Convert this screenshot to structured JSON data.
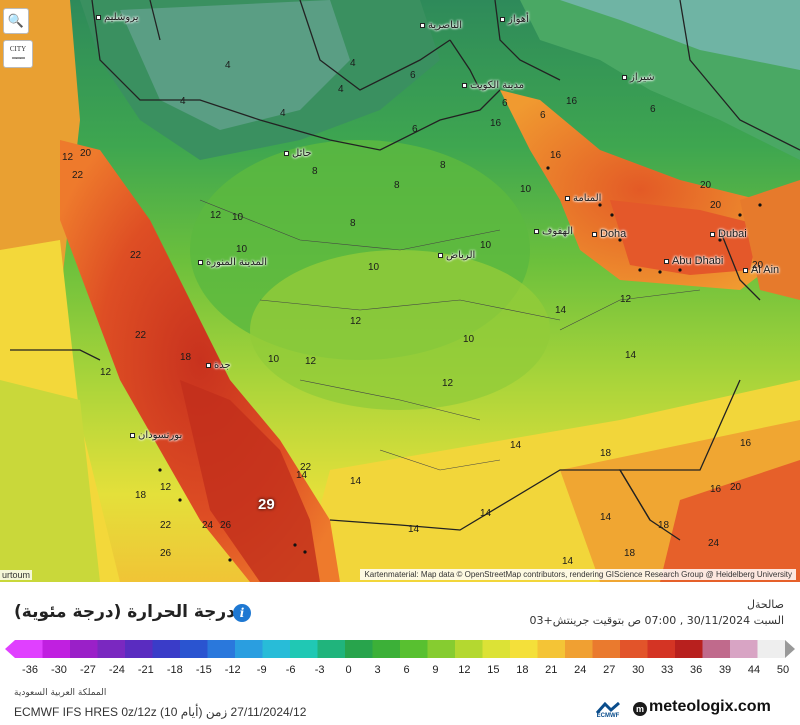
{
  "map": {
    "controls": {
      "zoom_icon": "magnifier-zoom-icon",
      "zoom_glyph": "🔍",
      "city_toggle_label": "CITY"
    },
    "attribution": "Kartenmaterial: Map data © OpenStreetMap contributors, rendering GIScience Research Group @ Heidelberg University",
    "corner_city": "urtoum",
    "cities": [
      {
        "name": "يروشليم"
      },
      {
        "name": "الناصرية"
      },
      {
        "name": "أهواز"
      },
      {
        "name": "مدينة الكويت"
      },
      {
        "name": "شيراز"
      },
      {
        "name": "حائل"
      },
      {
        "name": "المنامة"
      },
      {
        "name": "الهفوف"
      },
      {
        "name": "Doha"
      },
      {
        "name": "Dubai"
      },
      {
        "name": "Abu Dhabi"
      },
      {
        "name": "Al Ain"
      },
      {
        "name": "الرياض"
      },
      {
        "name": "المدينة المنورة"
      },
      {
        "name": "جدة"
      },
      {
        "name": "بورتسودان"
      }
    ],
    "temperature_labels": [
      "4",
      "4",
      "6",
      "4",
      "4",
      "4",
      "6",
      "6",
      "6",
      "6",
      "8",
      "8",
      "8",
      "8",
      "10",
      "10",
      "10",
      "10",
      "10",
      "10",
      "10",
      "12",
      "12",
      "12",
      "12",
      "12",
      "12",
      "12",
      "12",
      "14",
      "14",
      "14",
      "14",
      "14",
      "14",
      "14",
      "14",
      "14",
      "16",
      "16",
      "16",
      "16",
      "16",
      "18",
      "18",
      "18",
      "18",
      "18",
      "20",
      "20",
      "20",
      "20",
      "20",
      "22",
      "22",
      "22",
      "22",
      "22",
      "24",
      "24",
      "26",
      "26",
      "29"
    ],
    "colors": {
      "cold_green": "#3a9a5c",
      "green": "#56b844",
      "lime": "#a7d63a",
      "yellow": "#f1e43a",
      "orange": "#f4a632",
      "red_orange": "#ea6a2c",
      "red": "#d33a22",
      "border": "#222222"
    }
  },
  "panel": {
    "title": "درجة الحرارة (درجة مئوية)",
    "info_icon": "info-icon",
    "info_glyph": "i",
    "valid_label": "صالحةل",
    "valid_time": "السبت 30/11/2024 , 07:00 ص بتوقيت جرينتش+03",
    "region": "المملكة العربية السعودية",
    "model_line": "ECMWF IFS HRES 0z/12z (10 أيام) 27/11/2024/12 زمن",
    "ecmwf_logo_text": "ECMWF",
    "brand": "meteologix.com",
    "brand_icon_glyph": "m"
  },
  "scale": {
    "ticks": [
      "-36",
      "-30",
      "-27",
      "-24",
      "-21",
      "-18",
      "-15",
      "-12",
      "-9",
      "-6",
      "-3",
      "0",
      "3",
      "6",
      "9",
      "12",
      "15",
      "18",
      "21",
      "24",
      "27",
      "30",
      "33",
      "36",
      "39",
      "44",
      "50"
    ],
    "colors": [
      "#e040ff",
      "#c020e0",
      "#9a20c8",
      "#7a28c0",
      "#5a2cc0",
      "#3a3cc8",
      "#2a54d0",
      "#2a78dc",
      "#2a9ee0",
      "#28bcd8",
      "#20c8b4",
      "#20b47c",
      "#28a44c",
      "#3cb038",
      "#58c030",
      "#86cc30",
      "#b4d830",
      "#dce236",
      "#f4e03a",
      "#f4c436",
      "#f0a032",
      "#ea7a2e",
      "#e2542a",
      "#d43424",
      "#b8201e",
      "#c06a8c",
      "#d8a4c4",
      "#eeeeee"
    ]
  }
}
